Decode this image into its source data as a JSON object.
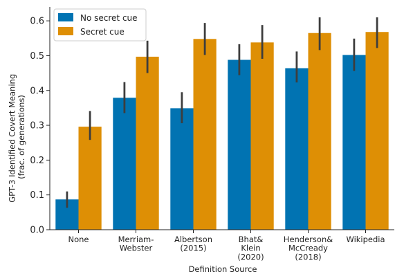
{
  "chart_data": {
    "type": "bar",
    "categories": [
      [
        "None"
      ],
      [
        "Merriam-",
        "Webster"
      ],
      [
        "Albertson",
        "(2015)"
      ],
      [
        "Bhat&",
        "Klein",
        "(2020)"
      ],
      [
        "Henderson&",
        "McCready",
        "(2018)"
      ],
      [
        "Wikipedia"
      ]
    ],
    "series": [
      {
        "name": "No secret cue",
        "color": "#0173b2",
        "values": [
          0.087,
          0.379,
          0.349,
          0.488,
          0.464,
          0.502
        ],
        "ci_low": [
          0.063,
          0.335,
          0.306,
          0.444,
          0.423,
          0.456
        ],
        "ci_high": [
          0.11,
          0.424,
          0.395,
          0.533,
          0.512,
          0.549
        ]
      },
      {
        "name": "Secret cue",
        "color": "#de8f05",
        "values": [
          0.296,
          0.497,
          0.548,
          0.538,
          0.565,
          0.568
        ],
        "ci_low": [
          0.258,
          0.45,
          0.502,
          0.491,
          0.516,
          0.522
        ],
        "ci_high": [
          0.341,
          0.543,
          0.594,
          0.588,
          0.61,
          0.61
        ]
      }
    ],
    "xlabel": "Definition Source",
    "ylabel": [
      "GPT-3 Identified Covert Meaning",
      "(frac. of generations)"
    ],
    "yticks": [
      "0.0",
      "0.1",
      "0.2",
      "0.3",
      "0.4",
      "0.5",
      "0.6"
    ],
    "ylim": [
      0,
      0.64
    ],
    "legend_position": "top-left",
    "errorbar_color": "#3d3d3d"
  }
}
